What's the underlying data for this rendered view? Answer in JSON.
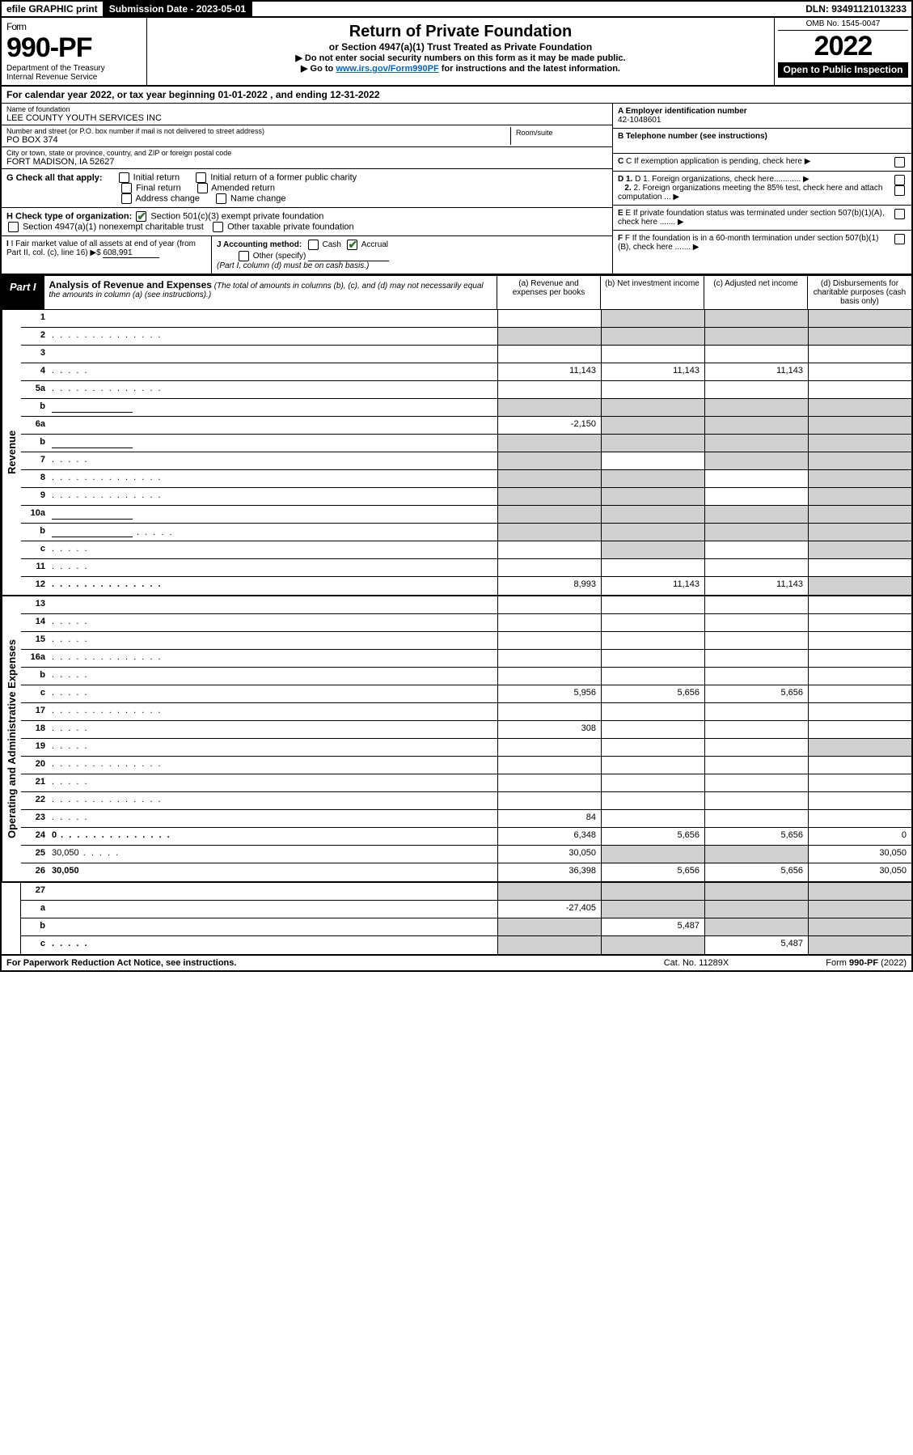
{
  "top": {
    "efile": "efile GRAPHIC print",
    "subdate": "Submission Date - 2023-05-01",
    "dln": "DLN: 93491121013233"
  },
  "header": {
    "form_word": "Form",
    "form_no": "990-PF",
    "dept": "Department of the Treasury",
    "irs": "Internal Revenue Service",
    "title": "Return of Private Foundation",
    "subtitle": "or Section 4947(a)(1) Trust Treated as Private Foundation",
    "instr1": "▶ Do not enter social security numbers on this form as it may be made public.",
    "instr2_pre": "▶ Go to ",
    "instr2_link": "www.irs.gov/Form990PF",
    "instr2_post": " for instructions and the latest information.",
    "omb": "OMB No. 1545-0047",
    "year": "2022",
    "open": "Open to Public Inspection"
  },
  "calyear": "For calendar year 2022, or tax year beginning 01-01-2022 , and ending 12-31-2022",
  "entity": {
    "name_lbl": "Name of foundation",
    "name": "LEE COUNTY YOUTH SERVICES INC",
    "addr_lbl": "Number and street (or P.O. box number if mail is not delivered to street address)",
    "addr": "PO BOX 374",
    "room_lbl": "Room/suite",
    "city_lbl": "City or town, state or province, country, and ZIP or foreign postal code",
    "city": "FORT MADISON, IA  52627"
  },
  "right": {
    "a_lbl": "A Employer identification number",
    "a_val": "42-1048601",
    "b_lbl": "B Telephone number (see instructions)",
    "c_lbl": "C If exemption application is pending, check here",
    "d1": "D 1. Foreign organizations, check here............",
    "d2": "2. Foreign organizations meeting the 85% test, check here and attach computation ...",
    "e": "E If private foundation status was terminated under section 507(b)(1)(A), check here .......",
    "f": "F If the foundation is in a 60-month termination under section 507(b)(1)(B), check here ......."
  },
  "g": {
    "label": "G Check all that apply:",
    "opts": [
      "Initial return",
      "Initial return of a former public charity",
      "Final return",
      "Amended return",
      "Address change",
      "Name change"
    ]
  },
  "h": {
    "label": "H Check type of organization:",
    "o1": "Section 501(c)(3) exempt private foundation",
    "o2": "Section 4947(a)(1) nonexempt charitable trust",
    "o3": "Other taxable private foundation"
  },
  "i": {
    "label": "I Fair market value of all assets at end of year (from Part II, col. (c), line 16)",
    "val": "608,991"
  },
  "j": {
    "label": "J Accounting method:",
    "cash": "Cash",
    "accrual": "Accrual",
    "other": "Other (specify)",
    "note": "(Part I, column (d) must be on cash basis.)"
  },
  "part1": {
    "label": "Part I",
    "title": "Analysis of Revenue and Expenses",
    "note": "(The total of amounts in columns (b), (c), and (d) may not necessarily equal the amounts in column (a) (see instructions).)",
    "col_a": "(a) Revenue and expenses per books",
    "col_b": "(b) Net investment income",
    "col_c": "(c) Adjusted net income",
    "col_d": "(d) Disbursements for charitable purposes (cash basis only)"
  },
  "sides": {
    "rev": "Revenue",
    "exp": "Operating and Administrative Expenses"
  },
  "rows": [
    {
      "n": "1",
      "d": "",
      "a": "",
      "b": "",
      "c": "",
      "sb": true,
      "sc": true,
      "sd": true
    },
    {
      "n": "2",
      "d": "",
      "a": "",
      "b": "",
      "c": "",
      "sa": true,
      "sb": true,
      "sc": true,
      "sd": true,
      "dots": true
    },
    {
      "n": "3",
      "d": "",
      "a": "",
      "b": "",
      "c": ""
    },
    {
      "n": "4",
      "d": "",
      "a": "11,143",
      "b": "11,143",
      "c": "11,143",
      "dots": "short"
    },
    {
      "n": "5a",
      "d": "",
      "a": "",
      "b": "",
      "c": "",
      "dots": true
    },
    {
      "n": "b",
      "d": "",
      "a": "",
      "b": "",
      "c": "",
      "sa": true,
      "sb": true,
      "sc": true,
      "sd": true,
      "inline": true
    },
    {
      "n": "6a",
      "d": "",
      "a": "-2,150",
      "b": "",
      "c": "",
      "sb": true,
      "sc": true,
      "sd": true
    },
    {
      "n": "b",
      "d": "",
      "a": "",
      "b": "",
      "c": "",
      "sa": true,
      "sb": true,
      "sc": true,
      "sd": true,
      "inline": true
    },
    {
      "n": "7",
      "d": "",
      "a": "",
      "b": "",
      "c": "",
      "sa": true,
      "sc": true,
      "sd": true,
      "dots": "short"
    },
    {
      "n": "8",
      "d": "",
      "a": "",
      "b": "",
      "c": "",
      "sa": true,
      "sb": true,
      "sd": true,
      "dots": true
    },
    {
      "n": "9",
      "d": "",
      "a": "",
      "b": "",
      "c": "",
      "sa": true,
      "sb": true,
      "sd": true,
      "dots": true
    },
    {
      "n": "10a",
      "d": "",
      "a": "",
      "b": "",
      "c": "",
      "sa": true,
      "sb": true,
      "sc": true,
      "sd": true,
      "inline": true
    },
    {
      "n": "b",
      "d": "",
      "a": "",
      "b": "",
      "c": "",
      "sa": true,
      "sb": true,
      "sc": true,
      "sd": true,
      "inline": true,
      "dots": "short"
    },
    {
      "n": "c",
      "d": "",
      "a": "",
      "b": "",
      "c": "",
      "sb": true,
      "sd": true,
      "dots": "short"
    },
    {
      "n": "11",
      "d": "",
      "a": "",
      "b": "",
      "c": "",
      "dots": "short"
    },
    {
      "n": "12",
      "d": "",
      "a": "8,993",
      "b": "11,143",
      "c": "11,143",
      "bold": true,
      "sd": true,
      "dots": true
    }
  ],
  "rows_exp": [
    {
      "n": "13",
      "d": "",
      "a": "",
      "b": "",
      "c": ""
    },
    {
      "n": "14",
      "d": "",
      "a": "",
      "b": "",
      "c": "",
      "dots": "short"
    },
    {
      "n": "15",
      "d": "",
      "a": "",
      "b": "",
      "c": "",
      "dots": "short"
    },
    {
      "n": "16a",
      "d": "",
      "a": "",
      "b": "",
      "c": "",
      "dots": true
    },
    {
      "n": "b",
      "d": "",
      "a": "",
      "b": "",
      "c": "",
      "dots": "short"
    },
    {
      "n": "c",
      "d": "",
      "a": "5,956",
      "b": "5,656",
      "c": "5,656",
      "dots": "short"
    },
    {
      "n": "17",
      "d": "",
      "a": "",
      "b": "",
      "c": "",
      "dots": true
    },
    {
      "n": "18",
      "d": "",
      "a": "308",
      "b": "",
      "c": "",
      "dots": "short"
    },
    {
      "n": "19",
      "d": "",
      "a": "",
      "b": "",
      "c": "",
      "sd": true,
      "dots": "short"
    },
    {
      "n": "20",
      "d": "",
      "a": "",
      "b": "",
      "c": "",
      "dots": true
    },
    {
      "n": "21",
      "d": "",
      "a": "",
      "b": "",
      "c": "",
      "dots": "short"
    },
    {
      "n": "22",
      "d": "",
      "a": "",
      "b": "",
      "c": "",
      "dots": true
    },
    {
      "n": "23",
      "d": "",
      "a": "84",
      "b": "",
      "c": "",
      "dots": "short"
    },
    {
      "n": "24",
      "d": "0",
      "a": "6,348",
      "b": "5,656",
      "c": "5,656",
      "bold": true,
      "dots": true
    },
    {
      "n": "25",
      "d": "30,050",
      "a": "30,050",
      "b": "",
      "c": "",
      "sb": true,
      "sc": true,
      "dots": "short"
    },
    {
      "n": "26",
      "d": "30,050",
      "a": "36,398",
      "b": "5,656",
      "c": "5,656",
      "bold": true
    }
  ],
  "rows_net": [
    {
      "n": "27",
      "d": "",
      "a": "",
      "b": "",
      "c": "",
      "sa": true,
      "sb": true,
      "sc": true,
      "sd": true
    },
    {
      "n": "a",
      "d": "",
      "a": "-27,405",
      "b": "",
      "c": "",
      "bold": true,
      "sb": true,
      "sc": true,
      "sd": true
    },
    {
      "n": "b",
      "d": "",
      "a": "",
      "b": "5,487",
      "c": "",
      "bold": true,
      "sa": true,
      "sc": true,
      "sd": true
    },
    {
      "n": "c",
      "d": "",
      "a": "",
      "b": "",
      "c": "5,487",
      "bold": true,
      "sa": true,
      "sb": true,
      "sd": true,
      "dots": "short"
    }
  ],
  "footer": {
    "pra": "For Paperwork Reduction Act Notice, see instructions.",
    "cat": "Cat. No. 11289X",
    "form": "Form 990-PF (2022)"
  },
  "colors": {
    "link": "#0066cc",
    "check": "#2a7a2a",
    "shade": "#d0d0d0"
  }
}
